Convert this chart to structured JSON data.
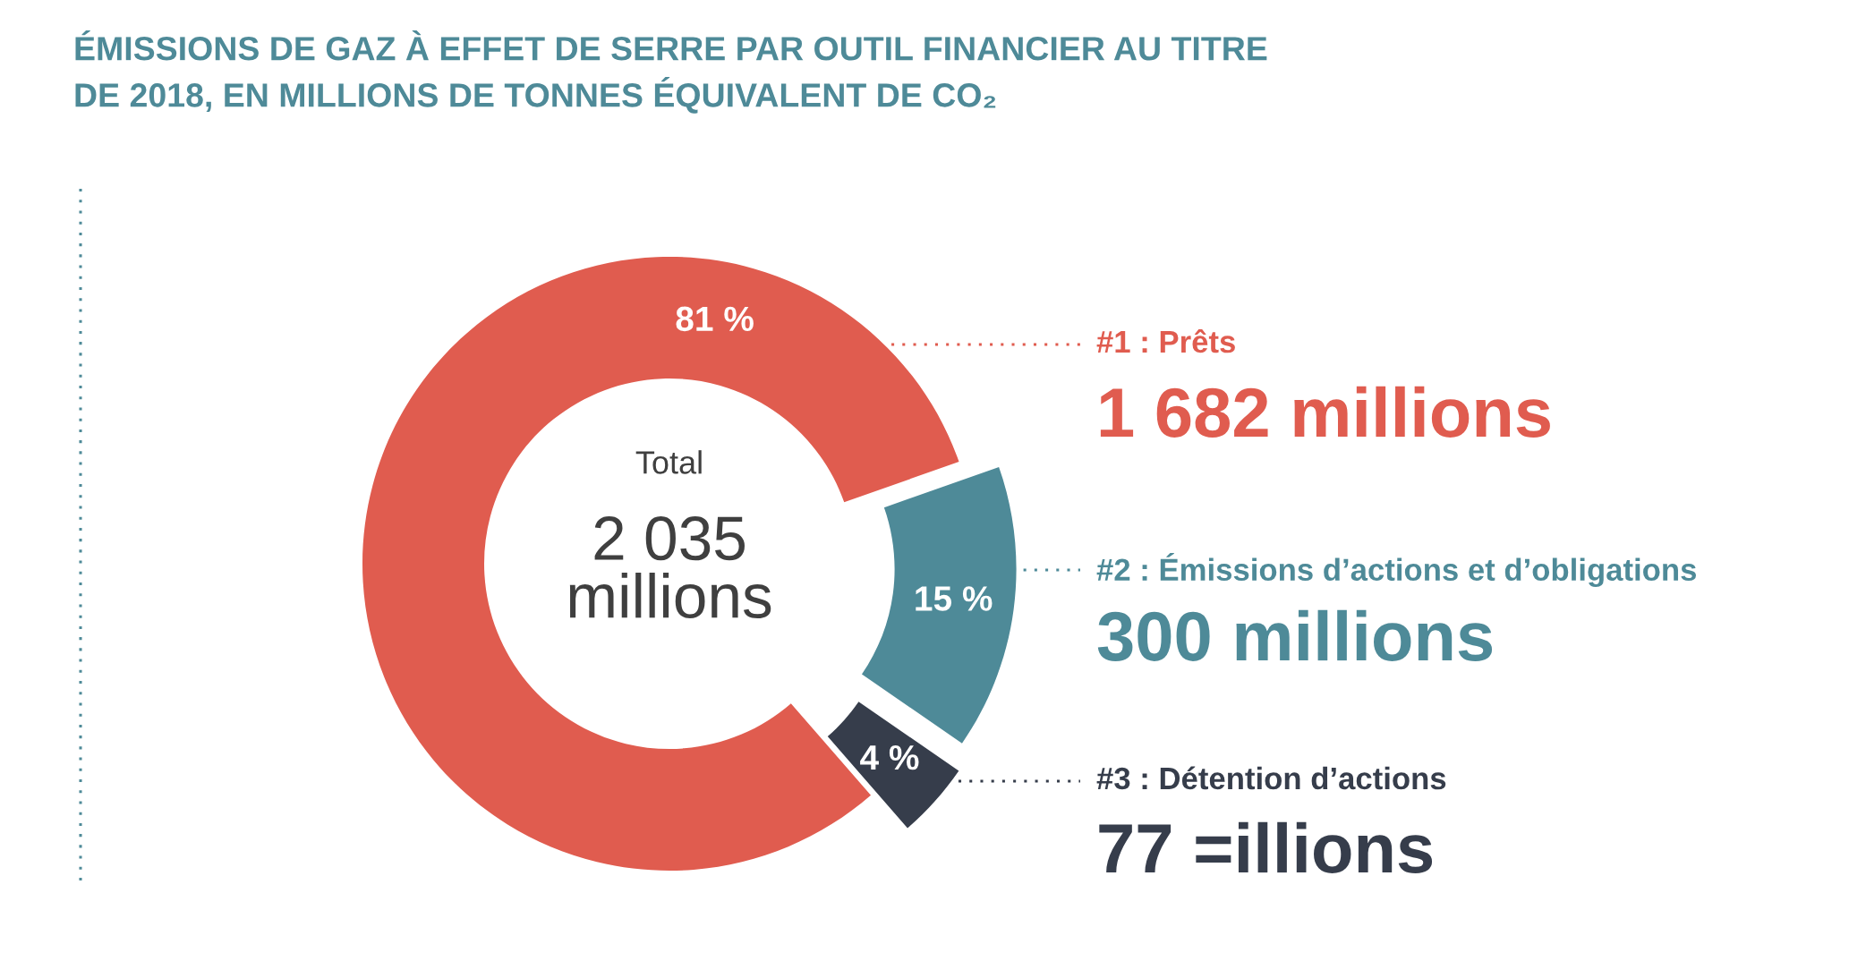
{
  "chart_data": {
    "type": "donut",
    "title": "ÉMISSIONS DE GAZ À EFFET DE SERRE PAR OUTIL FINANCIER AU TITRE\nDE 2018, EN MILLIONS DE TONNES ÉQUIVALENT DE CO₂",
    "categories": [
      "#1 : Prêts",
      "#2 : Émissions d’actions et d’obligations",
      "#3 : Détention d’actions"
    ],
    "values": [
      81,
      15,
      4
    ],
    "value_labels": [
      "81 %",
      "15 %",
      "4 %"
    ],
    "colors": [
      "#e05c4f",
      "#4e8a98",
      "#363d4b"
    ],
    "annotations": [
      "Total",
      "2 035\nmillions",
      "1 682 millions",
      "300 millions",
      "77 =illions"
    ],
    "legend": "right"
  }
}
